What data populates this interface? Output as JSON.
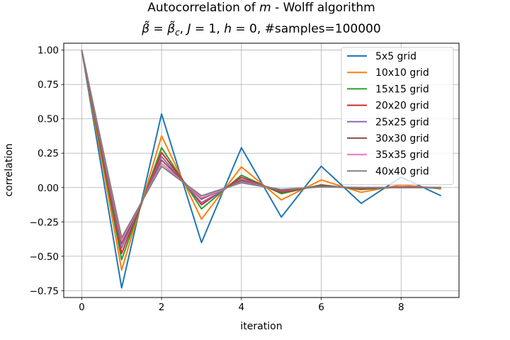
{
  "chart_data": {
    "type": "line",
    "title_line1_prefix": "Autocorrelation of ",
    "title_line1_var": "m",
    "title_line1_suffix": " - Wolff algorithm",
    "title_line2_beta": "β̃",
    "title_line2_eq1": " = ",
    "title_line2_betac": "β̃",
    "title_line2_betac_sub": "c",
    "title_line2_sep1": ", ",
    "title_line2_J": "J",
    "title_line2_eq2": " = 1, ",
    "title_line2_h": "h",
    "title_line2_eq3": " = 0, #samples=100000",
    "xlabel": "iteration",
    "ylabel": "correlation",
    "xlim": [
      -0.45,
      9.45
    ],
    "ylim": [
      -0.8,
      1.05
    ],
    "x_ticks": [
      0,
      2,
      4,
      6,
      8
    ],
    "x_tick_labels": [
      "0",
      "2",
      "4",
      "6",
      "8"
    ],
    "y_ticks": [
      -0.75,
      -0.5,
      -0.25,
      0.0,
      0.25,
      0.5,
      0.75,
      1.0
    ],
    "y_tick_labels": [
      "−0.75",
      "−0.50",
      "−0.25",
      "0.00",
      "0.25",
      "0.50",
      "0.75",
      "1.00"
    ],
    "grid": true,
    "legend_position": "top-right",
    "x": [
      0,
      1,
      2,
      3,
      4,
      5,
      6,
      7,
      8,
      9
    ],
    "series": [
      {
        "name": "5x5 grid",
        "color": "#1f77b4",
        "values": [
          1.0,
          -0.73,
          0.535,
          -0.4,
          0.29,
          -0.215,
          0.155,
          -0.115,
          0.075,
          -0.06
        ]
      },
      {
        "name": "10x10 grid",
        "color": "#ff7f0e",
        "values": [
          1.0,
          -0.6,
          0.375,
          -0.23,
          0.15,
          -0.09,
          0.055,
          -0.035,
          0.02,
          -0.01
        ]
      },
      {
        "name": "15x15 grid",
        "color": "#2ca02c",
        "values": [
          1.0,
          -0.525,
          0.29,
          -0.155,
          0.09,
          -0.045,
          0.02,
          -0.015,
          0.005,
          -0.005
        ]
      },
      {
        "name": "20x20 grid",
        "color": "#d62728",
        "values": [
          1.0,
          -0.48,
          0.255,
          -0.125,
          0.075,
          -0.035,
          0.015,
          -0.01,
          0.005,
          0.0
        ]
      },
      {
        "name": "25x25 grid",
        "color": "#9467bd",
        "values": [
          1.0,
          -0.44,
          0.225,
          -0.11,
          0.06,
          -0.025,
          0.01,
          -0.005,
          0.0,
          0.0
        ]
      },
      {
        "name": "30x30 grid",
        "color": "#8c564b",
        "values": [
          1.0,
          -0.41,
          0.2,
          -0.085,
          0.05,
          -0.02,
          0.01,
          -0.005,
          0.0,
          0.0
        ]
      },
      {
        "name": "35x35 grid",
        "color": "#e377c2",
        "values": [
          1.0,
          -0.385,
          0.175,
          -0.075,
          0.04,
          -0.015,
          0.005,
          0.0,
          0.0,
          0.0
        ]
      },
      {
        "name": "40x40 grid",
        "color": "#7f7f7f",
        "values": [
          1.0,
          -0.365,
          0.155,
          -0.06,
          0.035,
          -0.015,
          0.005,
          0.0,
          0.0,
          0.0
        ]
      }
    ]
  }
}
